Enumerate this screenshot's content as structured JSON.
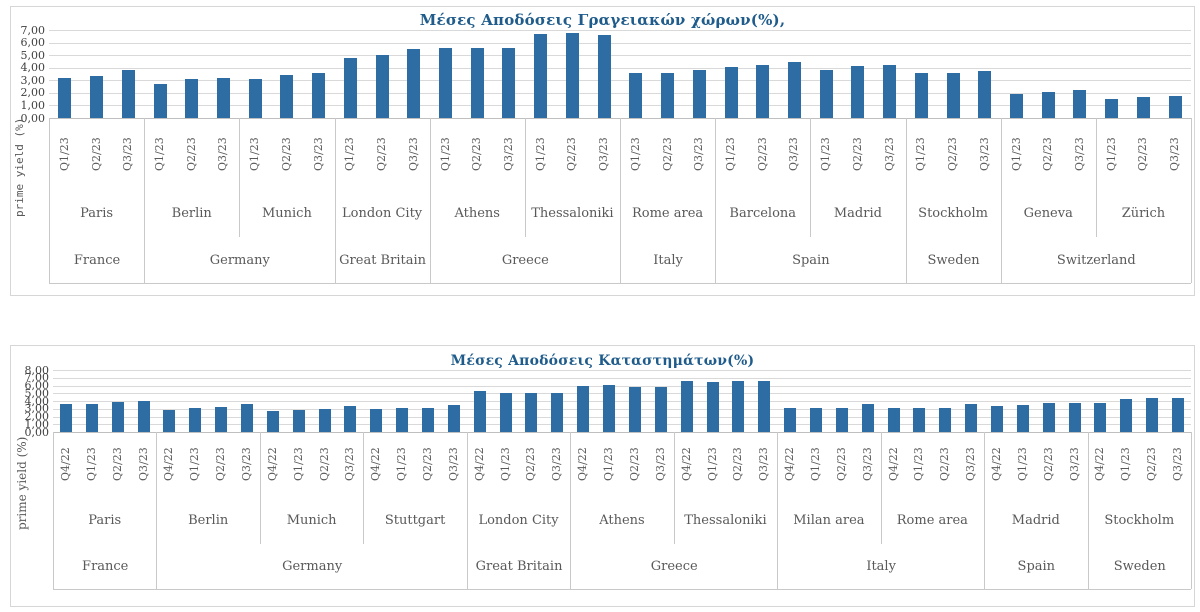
{
  "page": {
    "background": "#ffffff",
    "bar_color": "#2e6da3",
    "title_color": "#1f5c8b",
    "gridline_color": "#d9d9d9"
  },
  "chart_data": [
    {
      "type": "bar",
      "title": "Μέσες Αποδόσεις Γραγειακών χώρων(%),",
      "y_axis_title": "prime yield (%)",
      "ylim": [
        0,
        7
      ],
      "y_tick_labels": [
        "7,00",
        "6,00",
        "5,00",
        "4,00",
        "3,00",
        "2,00",
        "1,00",
        "0,00"
      ],
      "grid": true,
      "legend": "none",
      "quarters": [
        "Q1/23",
        "Q2/23",
        "Q3/23"
      ],
      "groups": [
        {
          "city": "Paris",
          "country": "France",
          "values": [
            3.15,
            3.35,
            3.8
          ]
        },
        {
          "city": "Berlin",
          "country": "Germany",
          "values": [
            2.7,
            3.1,
            3.2
          ]
        },
        {
          "city": "Munich",
          "country": "Germany",
          "values": [
            3.1,
            3.4,
            3.6
          ]
        },
        {
          "city": "London City",
          "country": "Great Britain",
          "values": [
            4.8,
            5.0,
            5.5
          ]
        },
        {
          "city": "Athens",
          "country": "Greece",
          "values": [
            5.6,
            5.6,
            5.55
          ]
        },
        {
          "city": "Thessaloniki",
          "country": "Greece",
          "values": [
            6.7,
            6.75,
            6.6
          ]
        },
        {
          "city": "Rome area",
          "country": "Italy",
          "values": [
            3.6,
            3.6,
            3.8
          ]
        },
        {
          "city": "Barcelona",
          "country": "Spain",
          "values": [
            4.05,
            4.2,
            4.45
          ]
        },
        {
          "city": "Madrid",
          "country": "Spain",
          "values": [
            3.85,
            4.15,
            4.25
          ]
        },
        {
          "city": "Stockholm",
          "country": "Sweden",
          "values": [
            3.6,
            3.55,
            3.7
          ]
        },
        {
          "city": "Geneva",
          "country": "Switzerland",
          "values": [
            1.9,
            2.1,
            2.2
          ]
        },
        {
          "city": "Zürich",
          "country": "Switzerland",
          "values": [
            1.55,
            1.7,
            1.75
          ]
        }
      ]
    },
    {
      "type": "bar",
      "title": "Μέσες Αποδόσεις Καταστημάτων(%)",
      "y_axis_title": "prime yield (%)",
      "ylim": [
        0,
        8
      ],
      "y_tick_labels": [
        "8,00",
        "7,00",
        "6,00",
        "5,00",
        "4,00",
        "3,00",
        "2,00",
        "1,00",
        "0,00"
      ],
      "grid": true,
      "legend": "none",
      "quarters": [
        "Q4/22",
        "Q1/23",
        "Q2/23",
        "Q3/23"
      ],
      "groups": [
        {
          "city": "Paris",
          "country": "France",
          "values": [
            3.55,
            3.65,
            3.85,
            3.95
          ]
        },
        {
          "city": "Berlin",
          "country": "Germany",
          "values": [
            2.85,
            3.05,
            3.2,
            3.55
          ]
        },
        {
          "city": "Munich",
          "country": "Germany",
          "values": [
            2.7,
            2.85,
            3.0,
            3.3
          ]
        },
        {
          "city": "Stuttgart",
          "country": "Germany",
          "values": [
            2.95,
            3.1,
            3.1,
            3.45
          ]
        },
        {
          "city": "London City",
          "country": "Great Britain",
          "values": [
            5.25,
            5.0,
            5.0,
            5.0
          ]
        },
        {
          "city": "Athens",
          "country": "Greece",
          "values": [
            6.0,
            6.1,
            5.85,
            5.85
          ]
        },
        {
          "city": "Thessaloniki",
          "country": "Greece",
          "values": [
            6.6,
            6.5,
            6.6,
            6.6
          ]
        },
        {
          "city": "Milan area",
          "country": "Italy",
          "values": [
            3.15,
            3.15,
            3.15,
            3.65
          ]
        },
        {
          "city": "Rome area",
          "country": "Italy",
          "values": [
            3.15,
            3.1,
            3.15,
            3.65
          ]
        },
        {
          "city": "Madrid",
          "country": "Spain",
          "values": [
            3.4,
            3.45,
            3.7,
            3.8
          ]
        },
        {
          "city": "Stockholm",
          "country": "Sweden",
          "values": [
            3.7,
            4.3,
            4.35,
            4.45
          ]
        }
      ]
    }
  ]
}
